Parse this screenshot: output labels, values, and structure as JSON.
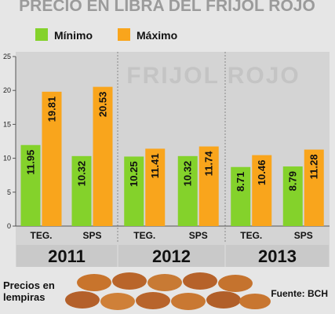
{
  "chart_data": {
    "type": "bar",
    "title": "PRECIO EN LIBRA DEL FRIJOL ROJO",
    "annotation": "FRIJOL ROJO",
    "note": "Precios en lempiras",
    "source": "Fuente: BCH",
    "groups": [
      "2011",
      "2012",
      "2013"
    ],
    "categories": [
      "TEG.",
      "SPS",
      "TEG.",
      "SPS",
      "TEG.",
      "SPS"
    ],
    "series": [
      {
        "name": "Mínimo",
        "color": "#84d22b",
        "values": [
          11.95,
          10.32,
          10.25,
          10.32,
          8.71,
          8.79
        ]
      },
      {
        "name": "Máximo",
        "color": "#f9a51c",
        "values": [
          19.81,
          20.53,
          11.41,
          11.74,
          10.46,
          11.28
        ]
      }
    ],
    "ylim": [
      0,
      25
    ],
    "yticks": [
      0,
      5,
      10,
      15,
      20,
      25
    ],
    "grid": false
  }
}
